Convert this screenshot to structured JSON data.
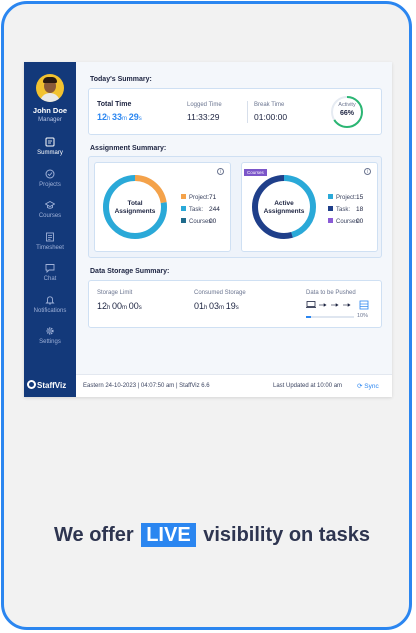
{
  "user": {
    "name": "John Doe",
    "role": "Manager"
  },
  "nav": [
    {
      "label": "Summary",
      "icon": "summary-icon",
      "active": true
    },
    {
      "label": "Projects",
      "icon": "projects-icon",
      "active": false
    },
    {
      "label": "Courses",
      "icon": "courses-icon",
      "active": false
    },
    {
      "label": "Timesheet",
      "icon": "timesheet-icon",
      "active": false
    },
    {
      "label": "Chat",
      "icon": "chat-icon",
      "active": false
    },
    {
      "label": "Notifications",
      "icon": "bell-icon",
      "active": false
    },
    {
      "label": "Settings",
      "icon": "gear-icon",
      "active": false
    }
  ],
  "brand": "StaffViz",
  "today": {
    "title": "Today's Summary:",
    "total_label": "Total Time",
    "total_h": "12",
    "total_m": "33",
    "total_s": "29",
    "logged_label": "Logged Time",
    "logged_value": "11:33:29",
    "break_label": "Break Time",
    "break_value": "01:00:00",
    "activity_label": "Activity",
    "activity_value": "66%",
    "activity_fraction": 0.66
  },
  "assignments": {
    "title": "Assignment Summary:",
    "total": {
      "center": "Total Assignments",
      "items": [
        {
          "label": "Project:",
          "value": "71",
          "color": "#f4a24a"
        },
        {
          "label": "Task:",
          "value": "244",
          "color": "#2aa9d8"
        },
        {
          "label": "Courses:",
          "value": "00",
          "color": "#1f6b8c"
        }
      ]
    },
    "active": {
      "tag": "Courses",
      "center": "Active Assignments",
      "items": [
        {
          "label": "Project:",
          "value": "15",
          "color": "#2aa9d8"
        },
        {
          "label": "Task:",
          "value": "18",
          "color": "#1f3f8a"
        },
        {
          "label": "Courses:",
          "value": "00",
          "color": "#8a5bd6"
        }
      ]
    }
  },
  "storage": {
    "title": "Data Storage Summary:",
    "limit_label": "Storage Limit",
    "limit_h": "12",
    "limit_m": "00",
    "limit_s": "00",
    "consumed_label": "Consumed Storage",
    "consumed_h": "01",
    "consumed_m": "03",
    "consumed_s": "19",
    "push_label": "Data to be Pushed",
    "push_percent": "10%",
    "push_fraction": 0.1
  },
  "footer": {
    "left": "Eastern 24-10-2023 | 04:07:50 am | StaffViz  6.6",
    "updated": "Last Updated at 10:00 am",
    "sync": "Sync"
  },
  "headline": {
    "before": "We offer",
    "live": "LIVE",
    "after": "visibility on tasks"
  },
  "colors": {
    "accent": "#2b86f0",
    "sidebar": "#13397a",
    "activity_ring": "#2bb673"
  }
}
